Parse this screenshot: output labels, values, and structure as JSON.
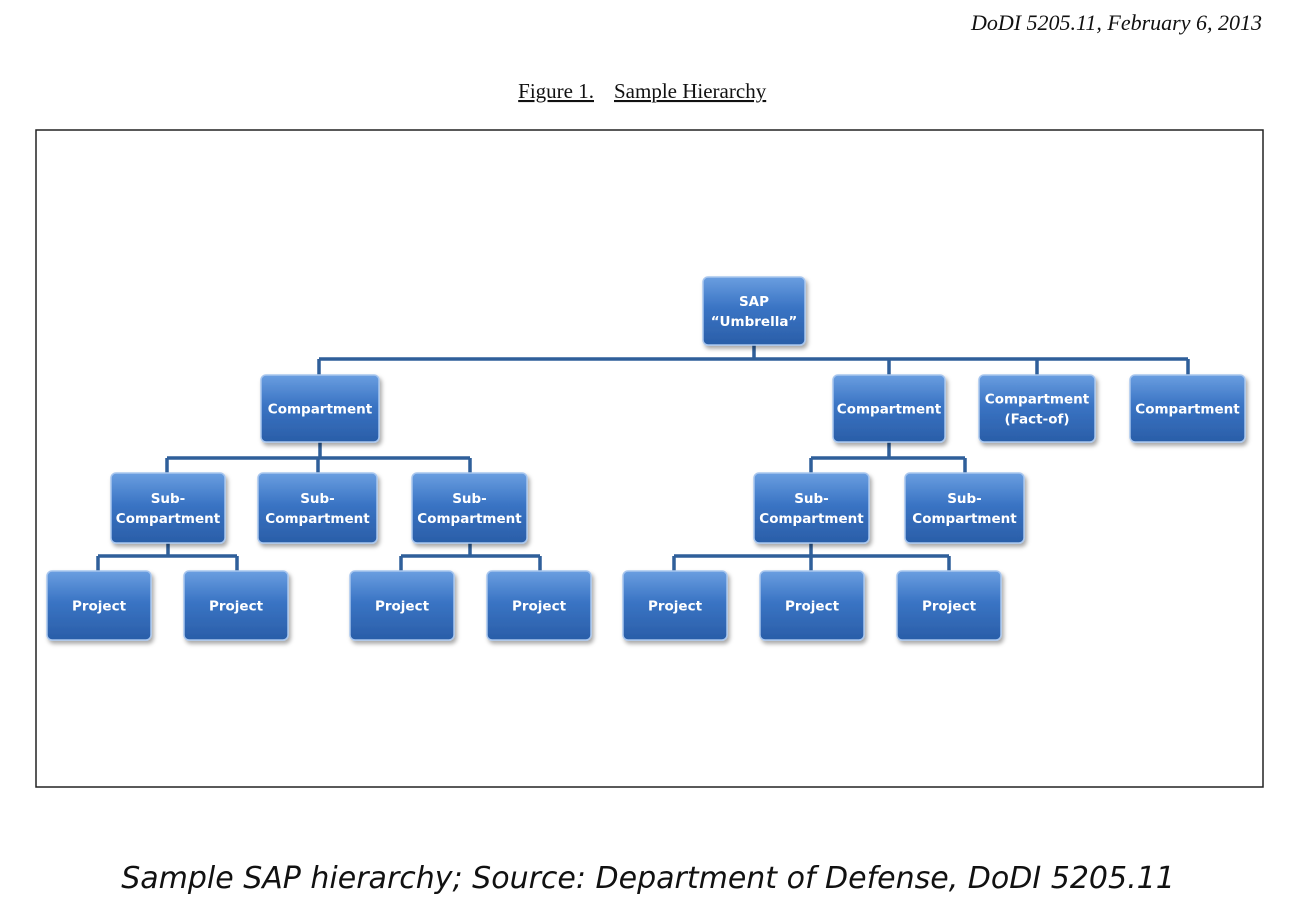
{
  "header": {
    "document": "DoDI 5205.11, February 6, 2013"
  },
  "figure": {
    "number": "Figure 1.",
    "title": "Sample Hierarchy"
  },
  "nodes": [
    {
      "lines": [
        "SAP",
        "“Umbrella”"
      ]
    },
    {
      "lines": [
        "Compartment"
      ]
    },
    {
      "lines": [
        "Compartment"
      ]
    },
    {
      "lines": [
        "Compartment",
        "(Fact-of)"
      ]
    },
    {
      "lines": [
        "Compartment"
      ]
    },
    {
      "lines": [
        "Sub-",
        "Compartment"
      ]
    },
    {
      "lines": [
        "Sub-",
        "Compartment"
      ]
    },
    {
      "lines": [
        "Sub-",
        "Compartment"
      ]
    },
    {
      "lines": [
        "Sub-",
        "Compartment"
      ]
    },
    {
      "lines": [
        "Sub-",
        "Compartment"
      ]
    },
    {
      "lines": [
        "Project"
      ]
    },
    {
      "lines": [
        "Project"
      ]
    },
    {
      "lines": [
        "Project"
      ]
    },
    {
      "lines": [
        "Project"
      ]
    },
    {
      "lines": [
        "Project"
      ]
    },
    {
      "lines": [
        "Project"
      ]
    },
    {
      "lines": [
        "Project"
      ]
    }
  ],
  "caption": "Sample SAP hierarchy; Source: Department of Defense, DoDI 5205.11"
}
